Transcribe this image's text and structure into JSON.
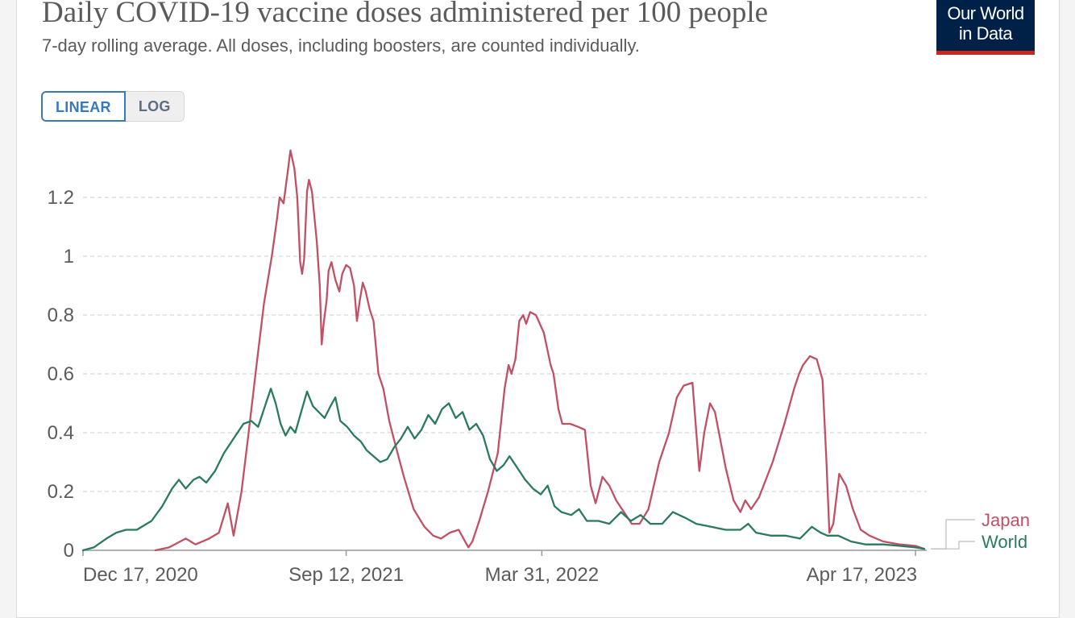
{
  "header": {
    "title": "Daily COVID-19 vaccine doses administered per 100 people",
    "subtitle": "7-day rolling average. All doses, including boosters, are counted individually.",
    "logo_line1": "Our World",
    "logo_line2": "in Data"
  },
  "controls": {
    "linear_label": "LINEAR",
    "log_label": "LOG",
    "selected": "LINEAR"
  },
  "colors": {
    "japan": "#c15065",
    "world": "#2a7a5e",
    "grid": "#dddddd",
    "axis": "#999999"
  },
  "chart_data": {
    "type": "line",
    "title": "Daily COVID-19 vaccine doses administered per 100 people",
    "subtitle": "7-day rolling average. All doses, including boosters, are counted individually.",
    "xlabel": "",
    "ylabel": "",
    "x_range": [
      "2020-12-17",
      "2023-04-26"
    ],
    "ylim": [
      0,
      1.35
    ],
    "y_ticks": [
      0,
      0.2,
      0.4,
      0.6,
      0.8,
      1,
      1.2
    ],
    "y_tick_labels": [
      "0",
      "0.2",
      "0.4",
      "0.6",
      "0.8",
      "1",
      "1.2"
    ],
    "x_ticks": [
      "2020-12-17",
      "2021-09-12",
      "2022-03-31",
      "2023-04-17"
    ],
    "x_tick_labels": [
      "Dec 17, 2020",
      "Sep 12, 2021",
      "Mar 31, 2022",
      "Apr 17, 2023"
    ],
    "grid": "horizontal dashed",
    "legend": "right, end-of-line labels",
    "series": [
      {
        "name": "Japan",
        "color": "#c15065",
        "points": [
          [
            "2021-03-01",
            0.0
          ],
          [
            "2021-03-15",
            0.01
          ],
          [
            "2021-04-01",
            0.04
          ],
          [
            "2021-04-11",
            0.02
          ],
          [
            "2021-04-25",
            0.04
          ],
          [
            "2021-05-05",
            0.06
          ],
          [
            "2021-05-14",
            0.16
          ],
          [
            "2021-05-20",
            0.05
          ],
          [
            "2021-05-28",
            0.2
          ],
          [
            "2021-06-05",
            0.42
          ],
          [
            "2021-06-12",
            0.62
          ],
          [
            "2021-06-20",
            0.84
          ],
          [
            "2021-06-28",
            1.0
          ],
          [
            "2021-07-03",
            1.12
          ],
          [
            "2021-07-06",
            1.2
          ],
          [
            "2021-07-10",
            1.18
          ],
          [
            "2021-07-14",
            1.28
          ],
          [
            "2021-07-17",
            1.36
          ],
          [
            "2021-07-21",
            1.3
          ],
          [
            "2021-07-24",
            1.2
          ],
          [
            "2021-07-27",
            0.98
          ],
          [
            "2021-07-29",
            0.94
          ],
          [
            "2021-07-31",
            0.99
          ],
          [
            "2021-08-03",
            1.22
          ],
          [
            "2021-08-05",
            1.26
          ],
          [
            "2021-08-08",
            1.22
          ],
          [
            "2021-08-13",
            1.05
          ],
          [
            "2021-08-16",
            0.9
          ],
          [
            "2021-08-18",
            0.7
          ],
          [
            "2021-08-20",
            0.77
          ],
          [
            "2021-08-23",
            0.85
          ],
          [
            "2021-08-25",
            0.95
          ],
          [
            "2021-08-28",
            0.98
          ],
          [
            "2021-09-01",
            0.92
          ],
          [
            "2021-09-05",
            0.88
          ],
          [
            "2021-09-08",
            0.94
          ],
          [
            "2021-09-12",
            0.97
          ],
          [
            "2021-09-16",
            0.96
          ],
          [
            "2021-09-20",
            0.9
          ],
          [
            "2021-09-23",
            0.78
          ],
          [
            "2021-09-26",
            0.85
          ],
          [
            "2021-09-29",
            0.91
          ],
          [
            "2021-10-02",
            0.88
          ],
          [
            "2021-10-06",
            0.82
          ],
          [
            "2021-10-10",
            0.78
          ],
          [
            "2021-10-15",
            0.6
          ],
          [
            "2021-10-20",
            0.55
          ],
          [
            "2021-10-26",
            0.44
          ],
          [
            "2021-11-02",
            0.35
          ],
          [
            "2021-11-10",
            0.25
          ],
          [
            "2021-11-20",
            0.14
          ],
          [
            "2021-12-01",
            0.08
          ],
          [
            "2021-12-10",
            0.05
          ],
          [
            "2021-12-18",
            0.04
          ],
          [
            "2021-12-27",
            0.06
          ],
          [
            "2022-01-05",
            0.07
          ],
          [
            "2022-01-10",
            0.04
          ],
          [
            "2022-01-15",
            0.01
          ],
          [
            "2022-01-19",
            0.03
          ],
          [
            "2022-01-26",
            0.1
          ],
          [
            "2022-02-04",
            0.2
          ],
          [
            "2022-02-14",
            0.33
          ],
          [
            "2022-02-21",
            0.55
          ],
          [
            "2022-02-25",
            0.63
          ],
          [
            "2022-02-28",
            0.6
          ],
          [
            "2022-03-04",
            0.65
          ],
          [
            "2022-03-08",
            0.78
          ],
          [
            "2022-03-12",
            0.8
          ],
          [
            "2022-03-15",
            0.77
          ],
          [
            "2022-03-19",
            0.81
          ],
          [
            "2022-03-25",
            0.8
          ],
          [
            "2022-04-02",
            0.74
          ],
          [
            "2022-04-09",
            0.63
          ],
          [
            "2022-04-12",
            0.6
          ],
          [
            "2022-04-17",
            0.48
          ],
          [
            "2022-04-21",
            0.43
          ],
          [
            "2022-04-29",
            0.43
          ],
          [
            "2022-05-07",
            0.42
          ],
          [
            "2022-05-14",
            0.41
          ],
          [
            "2022-05-20",
            0.22
          ],
          [
            "2022-05-25",
            0.16
          ],
          [
            "2022-06-01",
            0.25
          ],
          [
            "2022-06-08",
            0.22
          ],
          [
            "2022-06-15",
            0.17
          ],
          [
            "2022-06-23",
            0.13
          ],
          [
            "2022-07-01",
            0.09
          ],
          [
            "2022-07-09",
            0.09
          ],
          [
            "2022-07-18",
            0.14
          ],
          [
            "2022-07-29",
            0.3
          ],
          [
            "2022-08-08",
            0.4
          ],
          [
            "2022-08-16",
            0.52
          ],
          [
            "2022-08-23",
            0.56
          ],
          [
            "2022-09-01",
            0.57
          ],
          [
            "2022-09-08",
            0.27
          ],
          [
            "2022-09-13",
            0.4
          ],
          [
            "2022-09-19",
            0.5
          ],
          [
            "2022-09-24",
            0.47
          ],
          [
            "2022-10-05",
            0.28
          ],
          [
            "2022-10-13",
            0.17
          ],
          [
            "2022-10-20",
            0.13
          ],
          [
            "2022-10-25",
            0.17
          ],
          [
            "2022-10-31",
            0.14
          ],
          [
            "2022-11-08",
            0.18
          ],
          [
            "2022-11-22",
            0.3
          ],
          [
            "2022-12-04",
            0.43
          ],
          [
            "2022-12-14",
            0.55
          ],
          [
            "2022-12-19",
            0.6
          ],
          [
            "2022-12-23",
            0.63
          ],
          [
            "2022-12-30",
            0.66
          ],
          [
            "2023-01-06",
            0.65
          ],
          [
            "2023-01-12",
            0.58
          ],
          [
            "2023-01-16",
            0.3
          ],
          [
            "2023-01-19",
            0.06
          ],
          [
            "2023-01-23",
            0.09
          ],
          [
            "2023-01-29",
            0.26
          ],
          [
            "2023-02-05",
            0.22
          ],
          [
            "2023-02-12",
            0.14
          ],
          [
            "2023-02-20",
            0.07
          ],
          [
            "2023-03-01",
            0.05
          ],
          [
            "2023-03-15",
            0.03
          ],
          [
            "2023-04-01",
            0.02
          ],
          [
            "2023-04-17",
            0.015
          ],
          [
            "2023-04-26",
            0.005
          ]
        ]
      },
      {
        "name": "World",
        "color": "#2a7a5e",
        "points": [
          [
            "2020-12-17",
            0.0
          ],
          [
            "2020-12-28",
            0.01
          ],
          [
            "2021-01-10",
            0.04
          ],
          [
            "2021-01-20",
            0.06
          ],
          [
            "2021-01-30",
            0.07
          ],
          [
            "2021-02-10",
            0.07
          ],
          [
            "2021-02-25",
            0.1
          ],
          [
            "2021-03-08",
            0.15
          ],
          [
            "2021-03-18",
            0.21
          ],
          [
            "2021-03-25",
            0.24
          ],
          [
            "2021-04-01",
            0.21
          ],
          [
            "2021-04-09",
            0.24
          ],
          [
            "2021-04-15",
            0.25
          ],
          [
            "2021-04-22",
            0.23
          ],
          [
            "2021-05-01",
            0.27
          ],
          [
            "2021-05-10",
            0.33
          ],
          [
            "2021-05-20",
            0.38
          ],
          [
            "2021-05-30",
            0.43
          ],
          [
            "2021-06-07",
            0.44
          ],
          [
            "2021-06-14",
            0.42
          ],
          [
            "2021-06-22",
            0.5
          ],
          [
            "2021-06-27",
            0.55
          ],
          [
            "2021-07-02",
            0.5
          ],
          [
            "2021-07-07",
            0.43
          ],
          [
            "2021-07-12",
            0.39
          ],
          [
            "2021-07-17",
            0.42
          ],
          [
            "2021-07-22",
            0.4
          ],
          [
            "2021-07-28",
            0.47
          ],
          [
            "2021-08-03",
            0.54
          ],
          [
            "2021-08-09",
            0.49
          ],
          [
            "2021-08-15",
            0.47
          ],
          [
            "2021-08-21",
            0.45
          ],
          [
            "2021-08-27",
            0.49
          ],
          [
            "2021-09-01",
            0.52
          ],
          [
            "2021-09-06",
            0.44
          ],
          [
            "2021-09-13",
            0.42
          ],
          [
            "2021-09-20",
            0.39
          ],
          [
            "2021-09-27",
            0.37
          ],
          [
            "2021-10-03",
            0.34
          ],
          [
            "2021-10-10",
            0.32
          ],
          [
            "2021-10-17",
            0.3
          ],
          [
            "2021-10-24",
            0.31
          ],
          [
            "2021-10-31",
            0.35
          ],
          [
            "2021-11-07",
            0.38
          ],
          [
            "2021-11-14",
            0.42
          ],
          [
            "2021-11-21",
            0.38
          ],
          [
            "2021-11-28",
            0.41
          ],
          [
            "2021-12-05",
            0.46
          ],
          [
            "2021-12-12",
            0.43
          ],
          [
            "2021-12-19",
            0.48
          ],
          [
            "2021-12-26",
            0.5
          ],
          [
            "2022-01-02",
            0.45
          ],
          [
            "2022-01-09",
            0.47
          ],
          [
            "2022-01-16",
            0.41
          ],
          [
            "2022-01-23",
            0.43
          ],
          [
            "2022-01-30",
            0.39
          ],
          [
            "2022-02-06",
            0.31
          ],
          [
            "2022-02-13",
            0.27
          ],
          [
            "2022-02-20",
            0.29
          ],
          [
            "2022-02-26",
            0.32
          ],
          [
            "2022-03-06",
            0.28
          ],
          [
            "2022-03-14",
            0.24
          ],
          [
            "2022-03-22",
            0.21
          ],
          [
            "2022-03-30",
            0.19
          ],
          [
            "2022-04-06",
            0.22
          ],
          [
            "2022-04-13",
            0.15
          ],
          [
            "2022-04-20",
            0.13
          ],
          [
            "2022-04-30",
            0.12
          ],
          [
            "2022-05-08",
            0.14
          ],
          [
            "2022-05-16",
            0.1
          ],
          [
            "2022-05-28",
            0.1
          ],
          [
            "2022-06-08",
            0.09
          ],
          [
            "2022-06-20",
            0.13
          ],
          [
            "2022-06-30",
            0.1
          ],
          [
            "2022-07-10",
            0.12
          ],
          [
            "2022-07-20",
            0.09
          ],
          [
            "2022-08-01",
            0.09
          ],
          [
            "2022-08-12",
            0.13
          ],
          [
            "2022-08-25",
            0.11
          ],
          [
            "2022-09-05",
            0.09
          ],
          [
            "2022-09-20",
            0.08
          ],
          [
            "2022-10-05",
            0.07
          ],
          [
            "2022-10-20",
            0.07
          ],
          [
            "2022-10-28",
            0.09
          ],
          [
            "2022-11-05",
            0.06
          ],
          [
            "2022-11-20",
            0.05
          ],
          [
            "2022-12-05",
            0.05
          ],
          [
            "2022-12-20",
            0.04
          ],
          [
            "2023-01-01",
            0.08
          ],
          [
            "2023-01-10",
            0.06
          ],
          [
            "2023-01-17",
            0.05
          ],
          [
            "2023-01-28",
            0.05
          ],
          [
            "2023-02-10",
            0.03
          ],
          [
            "2023-02-25",
            0.02
          ],
          [
            "2023-03-15",
            0.02
          ],
          [
            "2023-04-01",
            0.015
          ],
          [
            "2023-04-17",
            0.01
          ],
          [
            "2023-04-26",
            0.005
          ]
        ]
      }
    ]
  }
}
